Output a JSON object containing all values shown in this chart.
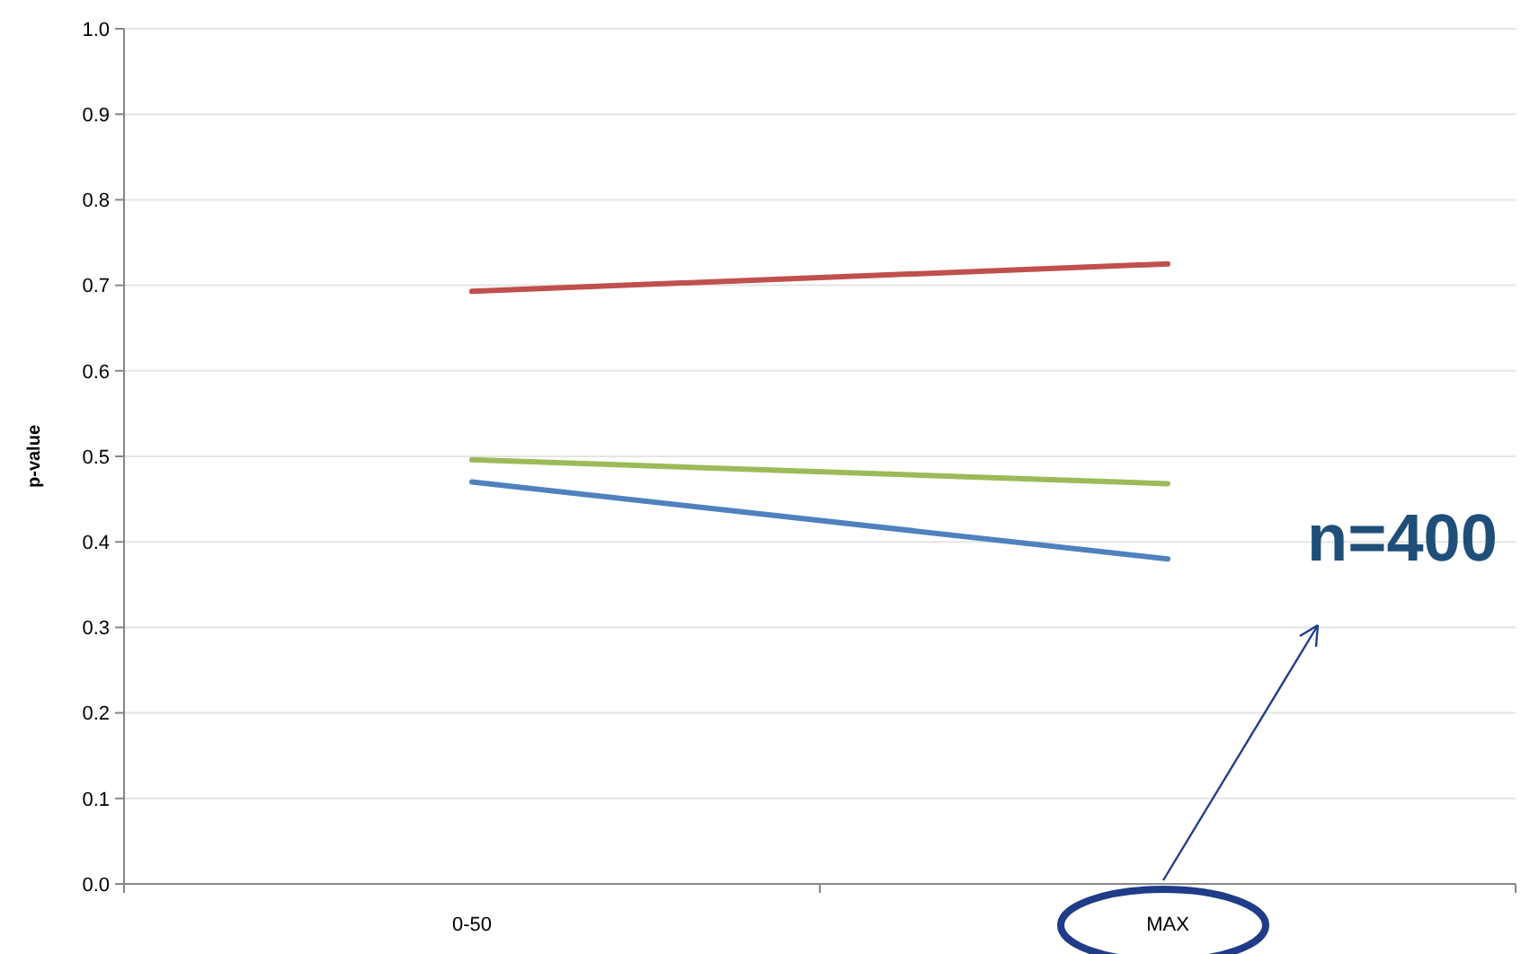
{
  "chart_data": {
    "type": "line",
    "ylabel": "p-value",
    "categories": [
      "0-50",
      "MAX"
    ],
    "series": [
      {
        "color": "#c0504d",
        "values": [
          0.693,
          0.725
        ]
      },
      {
        "color": "#9bbb59",
        "values": [
          0.496,
          0.468
        ]
      },
      {
        "color": "#4f81bd",
        "values": [
          0.47,
          0.38
        ]
      }
    ],
    "ylim": [
      0,
      1
    ],
    "yticks": [
      {
        "value": 0,
        "label": "0.0"
      },
      {
        "value": 0.1,
        "label": "0.1"
      },
      {
        "value": 0.2,
        "label": "0.2"
      },
      {
        "value": 0.3,
        "label": "0.3"
      },
      {
        "value": 0.4,
        "label": "0.4"
      },
      {
        "value": 0.5,
        "label": "0.5"
      },
      {
        "value": 0.6,
        "label": "0.6"
      },
      {
        "value": 0.7,
        "label": "0.7"
      },
      {
        "value": 0.8,
        "label": "0.8"
      },
      {
        "value": 0.9,
        "label": "0.9"
      },
      {
        "value": 1,
        "label": "1.0"
      }
    ],
    "grid": "y",
    "marker": "none",
    "line_style": "solid",
    "annotations": [
      "n=400"
    ]
  }
}
